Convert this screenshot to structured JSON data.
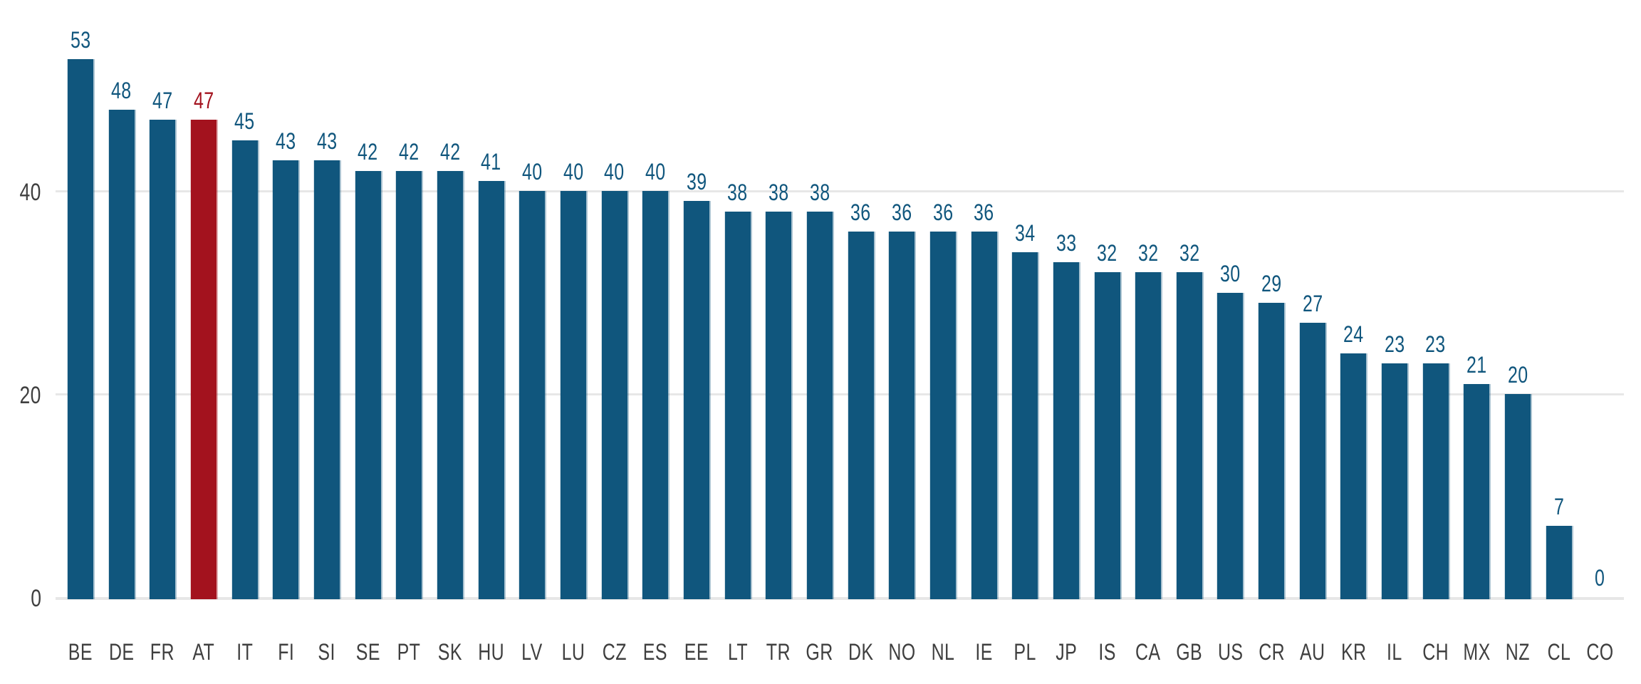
{
  "chart_data": {
    "type": "bar",
    "categories": [
      "BE",
      "DE",
      "FR",
      "AT",
      "IT",
      "FI",
      "SI",
      "SE",
      "PT",
      "SK",
      "HU",
      "LV",
      "LU",
      "CZ",
      "ES",
      "EE",
      "LT",
      "TR",
      "GR",
      "DK",
      "NO",
      "NL",
      "IE",
      "PL",
      "JP",
      "IS",
      "CA",
      "GB",
      "US",
      "CR",
      "AU",
      "KR",
      "IL",
      "CH",
      "MX",
      "NZ",
      "CL",
      "CO"
    ],
    "values": [
      53,
      48,
      47,
      47,
      45,
      43,
      43,
      42,
      42,
      42,
      41,
      40,
      40,
      40,
      40,
      39,
      38,
      38,
      38,
      36,
      36,
      36,
      36,
      34,
      33,
      32,
      32,
      32,
      30,
      29,
      27,
      24,
      23,
      23,
      21,
      20,
      7,
      0
    ],
    "value_labels": "rounded integers shown above each bar",
    "highlight": {
      "category": "AT",
      "index": 3,
      "color": "#A3121E"
    },
    "bar_color": "#10567D",
    "value_label_color": "#10567D",
    "highlight_label_color": "#A3121E",
    "axis_label_color": "#3F3F3F",
    "gridline_color": "#E7E7E7",
    "yticks": [
      0,
      20,
      40
    ],
    "ylim": [
      0,
      56
    ],
    "grid": "horizontal gridlines behind bars",
    "legend": "none",
    "xlabel": "",
    "ylabel": ""
  }
}
